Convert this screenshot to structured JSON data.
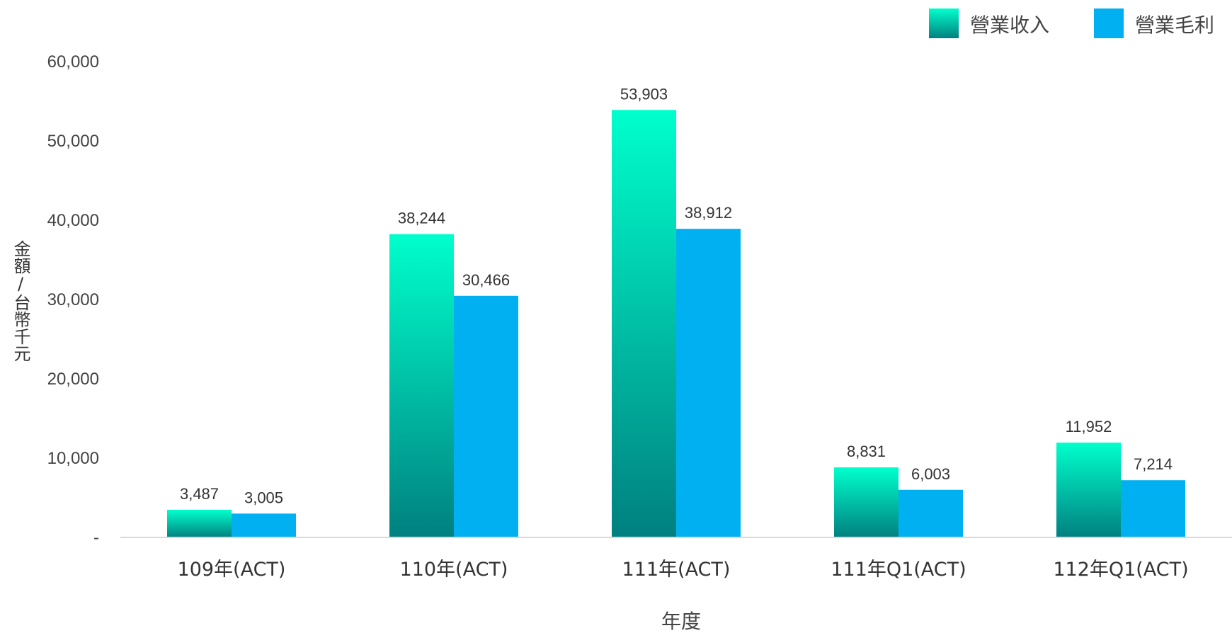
{
  "chart_data": {
    "type": "bar",
    "title": "",
    "xlabel": "年度",
    "ylabel": "金額/台幣千元",
    "categories": [
      "109年(ACT)",
      "110年(ACT)",
      "111年(ACT)",
      "111年Q1(ACT)",
      "112年Q1(ACT)"
    ],
    "series": [
      {
        "name": "營業收入",
        "values": [
          3487,
          38244,
          53903,
          8831,
          11952
        ],
        "labels": [
          "3,487",
          "38,244",
          "53,903",
          "8,831",
          "11,952"
        ]
      },
      {
        "name": "營業毛利",
        "values": [
          3005,
          30466,
          38912,
          6003,
          7214
        ],
        "labels": [
          "3,005",
          "30,466",
          "38,912",
          "6,003",
          "7,214"
        ]
      }
    ],
    "ylim": [
      0,
      60000
    ],
    "yticks": [
      {
        "value": 0,
        "label": "-"
      },
      {
        "value": 10000,
        "label": "10,000"
      },
      {
        "value": 20000,
        "label": "20,000"
      },
      {
        "value": 30000,
        "label": "30,000"
      },
      {
        "value": 40000,
        "label": "40,000"
      },
      {
        "value": 50000,
        "label": "50,000"
      },
      {
        "value": 60000,
        "label": "60,000"
      }
    ],
    "grid": false,
    "legend_position": "top-right",
    "colors": {
      "revenue_top": "#00ffcc",
      "revenue_bottom": "#008080",
      "gross_profit": "#00b0f0",
      "axis": "#d9d9d9"
    }
  }
}
